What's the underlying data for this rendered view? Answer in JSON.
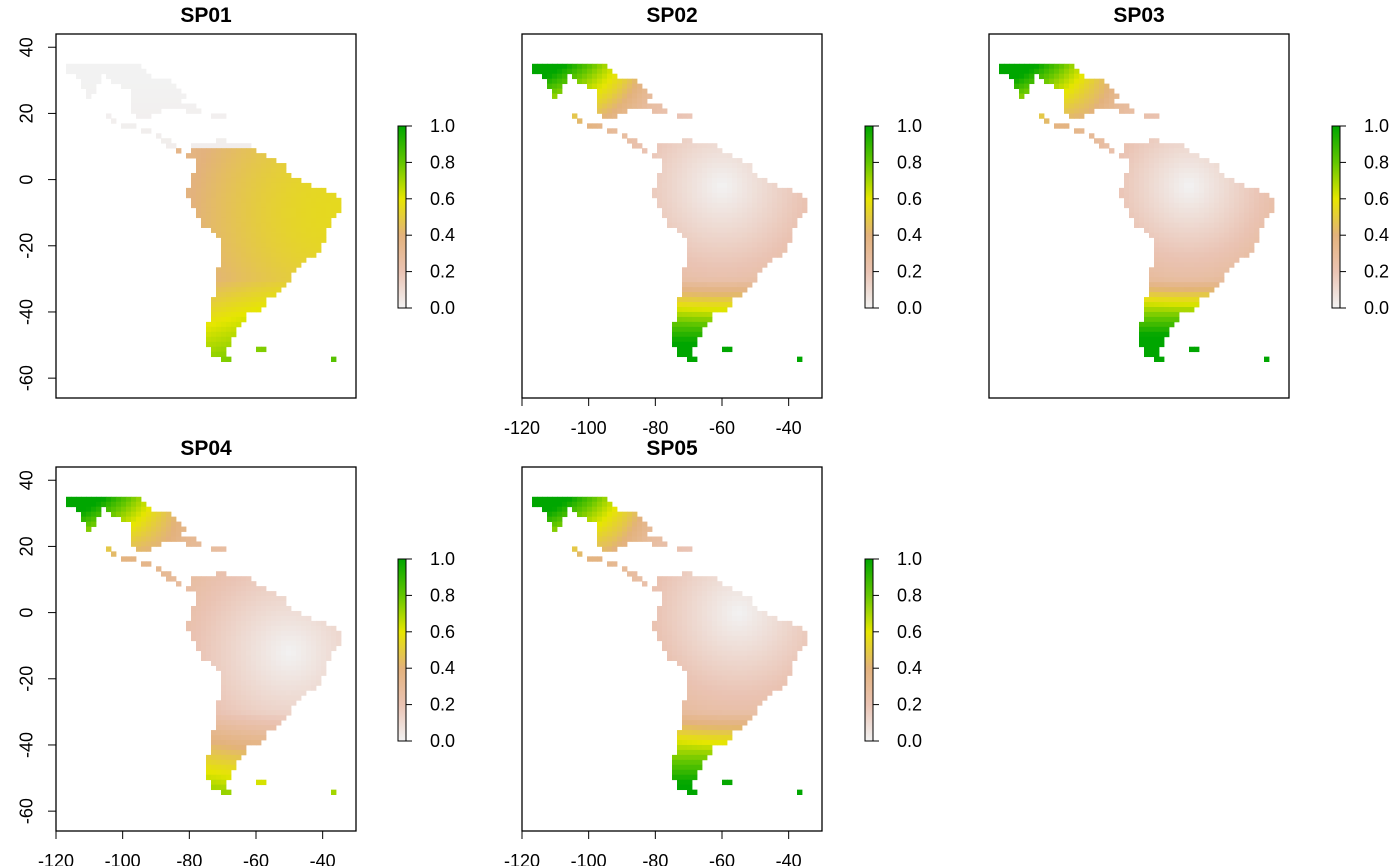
{
  "chart_data": [
    {
      "type": "heatmap",
      "title": "SP01",
      "xlim": [
        -120,
        -30
      ],
      "ylim": [
        -66,
        44
      ],
      "yticks": [
        "40",
        "20",
        "0",
        "-20",
        "-40",
        "-60"
      ],
      "xticks": [],
      "colorbar": {
        "ticks": [
          "1.0",
          "0.8",
          "0.6",
          "0.4",
          "0.2",
          "0.0"
        ],
        "range": [
          0,
          1
        ]
      },
      "peak": [
        -35,
        -10
      ],
      "peak_value": 0.55,
      "spread": 55,
      "south_gradient": 0.8
    },
    {
      "type": "heatmap",
      "title": "SP02",
      "xlim": [
        -120,
        -30
      ],
      "ylim": [
        -66,
        44
      ],
      "yticks": [],
      "xticks": [
        "-120",
        "-100",
        "-80",
        "-60",
        "-40"
      ],
      "colorbar": {
        "ticks": [
          "1.0",
          "0.8",
          "0.6",
          "0.4",
          "0.2",
          "0.0"
        ],
        "range": [
          0,
          1
        ]
      },
      "low_center": [
        -60,
        -2
      ],
      "spread": 40,
      "north_high": 0.85,
      "south_high": 0.85
    },
    {
      "type": "heatmap",
      "title": "SP03",
      "xlim": [
        -120,
        -30
      ],
      "ylim": [
        -66,
        44
      ],
      "yticks": [],
      "xticks": [],
      "colorbar": {
        "ticks": [
          "1.0",
          "0.8",
          "0.6",
          "0.4",
          "0.2",
          "0.0"
        ],
        "range": [
          0,
          1
        ]
      },
      "low_center": [
        -60,
        -2
      ],
      "spread": 35,
      "north_high": 0.9,
      "south_high": 0.95
    },
    {
      "type": "heatmap",
      "title": "SP04",
      "xlim": [
        -120,
        -30
      ],
      "ylim": [
        -66,
        44
      ],
      "yticks": [
        "40",
        "20",
        "0",
        "-20",
        "-40",
        "-60"
      ],
      "xticks": [
        "-120",
        "-100",
        "-80",
        "-60",
        "-40"
      ],
      "colorbar": {
        "ticks": [
          "1.0",
          "0.8",
          "0.6",
          "0.4",
          "0.2",
          "0.0"
        ],
        "range": [
          0,
          1
        ]
      },
      "low_center": [
        -50,
        -12
      ],
      "spread": 45,
      "north_high": 0.9,
      "south_high": 0.4
    },
    {
      "type": "heatmap",
      "title": "SP05",
      "xlim": [
        -120,
        -30
      ],
      "ylim": [
        -66,
        44
      ],
      "yticks": [],
      "xticks": [
        "-120",
        "-100",
        "-80",
        "-60",
        "-40"
      ],
      "colorbar": {
        "ticks": [
          "1.0",
          "0.8",
          "0.6",
          "0.4",
          "0.2",
          "0.0"
        ],
        "range": [
          0,
          1
        ]
      },
      "low_center": [
        -55,
        0
      ],
      "spread": 40,
      "north_high": 0.9,
      "south_high": 0.75
    }
  ],
  "colors": {
    "low": "#f2f2f2",
    "mid_low": "#e8b49a",
    "mid": "#e2c23b",
    "mid_high": "#e6e600",
    "high": "#00a600"
  }
}
